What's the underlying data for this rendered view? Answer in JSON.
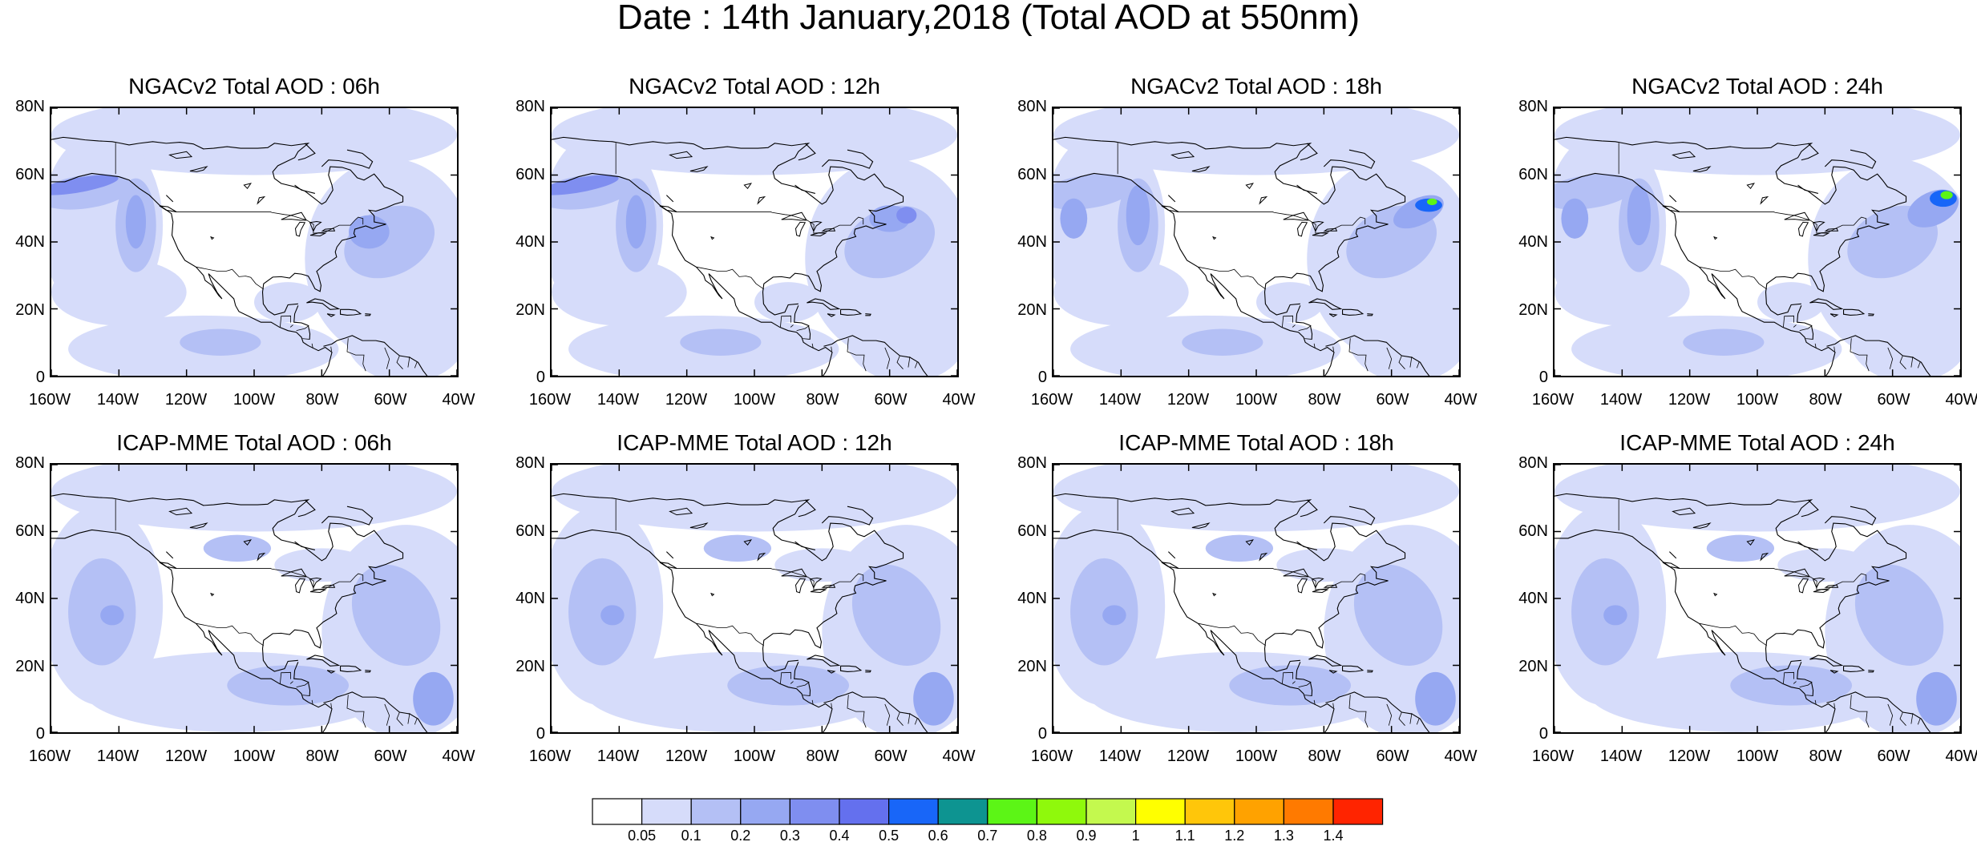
{
  "title": "Date : 14th January,2018 (Total AOD at 550nm)",
  "panels": [
    {
      "title": "NGACv2 Total AOD : 06h"
    },
    {
      "title": "NGACv2 Total AOD : 12h"
    },
    {
      "title": "NGACv2 Total AOD : 18h"
    },
    {
      "title": "NGACv2 Total AOD : 24h"
    },
    {
      "title": "ICAP-MME Total AOD : 06h"
    },
    {
      "title": "ICAP-MME Total AOD : 12h"
    },
    {
      "title": "ICAP-MME Total AOD : 18h"
    },
    {
      "title": "ICAP-MME Total AOD : 24h"
    }
  ],
  "axes": {
    "lat_labels": [
      "80N",
      "60N",
      "40N",
      "20N",
      "0"
    ],
    "lon_labels": [
      "160W",
      "140W",
      "120W",
      "100W",
      "80W",
      "60W",
      "40W"
    ]
  },
  "colorbar": {
    "labels": [
      "0.05",
      "0.1",
      "0.2",
      "0.3",
      "0.4",
      "0.5",
      "0.6",
      "0.7",
      "0.8",
      "0.9",
      "1",
      "1.1",
      "1.2",
      "1.3",
      "1.4"
    ],
    "colors": [
      "#ffffff",
      "#d6dcfa",
      "#b4c0f5",
      "#96a8f2",
      "#7f8ef0",
      "#6470ee",
      "#1866f8",
      "#0d9491",
      "#5cf516",
      "#8ff90c",
      "#c4f94e",
      "#ffff00",
      "#ffc60a",
      "#ffa200",
      "#ff7a00",
      "#ff2400"
    ]
  }
}
